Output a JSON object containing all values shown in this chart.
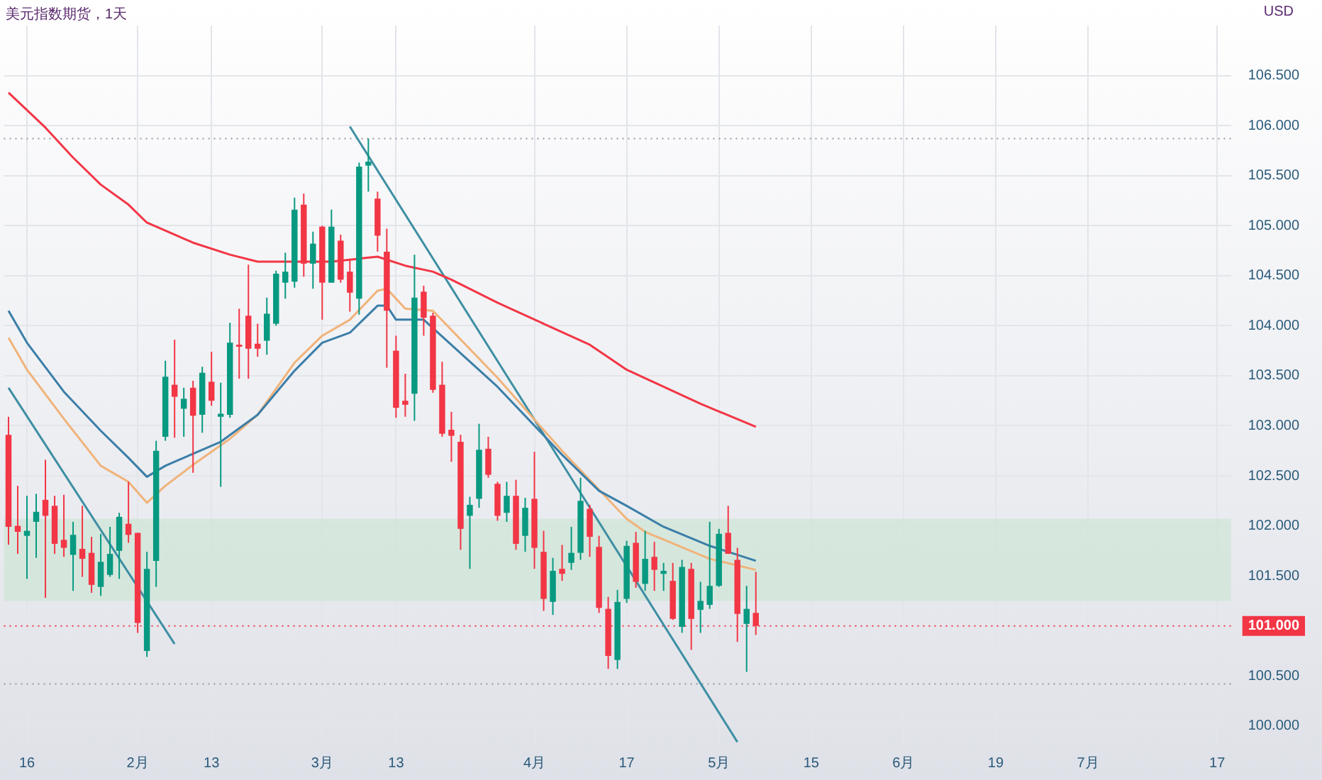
{
  "chart_data": {
    "type": "candlestick",
    "title": "美元指数期货，1天",
    "ylabel": "USD",
    "categories": [
      null,
      null,
      "16",
      null,
      null,
      null,
      null,
      null,
      null,
      null,
      null,
      null,
      null,
      null,
      "2月",
      null,
      null,
      null,
      null,
      null,
      null,
      null,
      "13",
      null,
      null,
      null,
      null,
      null,
      null,
      null,
      null,
      null,
      null,
      null,
      "3月",
      null,
      null,
      null,
      null,
      null,
      null,
      null,
      "13",
      null,
      null,
      null,
      null,
      null,
      null,
      null,
      null,
      null,
      null,
      null,
      null,
      null,
      null,
      "4月",
      null,
      null,
      null,
      null,
      null,
      null,
      null,
      null,
      null,
      "17",
      null,
      null,
      null,
      null,
      null,
      null,
      null,
      null,
      null,
      "5月",
      null,
      null,
      null,
      null,
      null,
      null,
      null,
      null,
      null,
      "15",
      null,
      null,
      null,
      null,
      null,
      null,
      null,
      null,
      null,
      "6月",
      null,
      null,
      null,
      null,
      null,
      null,
      null,
      null,
      null,
      "19",
      null,
      null,
      null,
      null,
      null,
      null,
      null,
      null,
      null,
      "7月",
      null,
      null,
      null,
      null,
      null,
      null,
      null,
      null,
      null,
      null,
      null,
      null,
      null,
      "17",
      null
    ],
    "ohlc": [
      [
        102.91,
        103.09,
        101.81,
        101.99
      ],
      [
        102.0,
        102.4,
        101.72,
        101.94
      ],
      [
        101.9,
        102.3,
        101.47,
        101.95
      ],
      [
        102.04,
        102.32,
        101.68,
        102.14
      ],
      [
        102.26,
        102.66,
        101.28,
        102.1
      ],
      [
        102.2,
        102.3,
        101.72,
        101.82
      ],
      [
        101.86,
        102.31,
        101.69,
        101.78
      ],
      [
        101.71,
        102.04,
        101.35,
        101.91
      ],
      [
        101.77,
        102.2,
        101.49,
        101.67
      ],
      [
        101.73,
        101.89,
        101.33,
        101.41
      ],
      [
        101.39,
        101.92,
        101.3,
        101.64
      ],
      [
        101.51,
        101.99,
        101.49,
        101.72
      ],
      [
        101.75,
        102.13,
        101.47,
        102.09
      ],
      [
        102.02,
        102.44,
        101.83,
        101.91
      ],
      [
        101.93,
        101.93,
        100.93,
        101.03
      ],
      [
        100.75,
        101.74,
        100.69,
        101.57
      ],
      [
        101.65,
        102.85,
        101.39,
        102.75
      ],
      [
        102.89,
        103.65,
        102.85,
        103.49
      ],
      [
        103.41,
        103.86,
        102.88,
        103.29
      ],
      [
        103.17,
        103.38,
        102.89,
        103.27
      ],
      [
        103.38,
        103.45,
        102.53,
        103.1
      ],
      [
        103.11,
        103.59,
        102.93,
        103.53
      ],
      [
        103.44,
        103.74,
        103.2,
        103.25
      ],
      [
        103.09,
        103.43,
        102.39,
        103.12
      ],
      [
        103.11,
        104.03,
        103.08,
        103.83
      ],
      [
        103.81,
        104.17,
        103.47,
        103.79
      ],
      [
        104.1,
        104.61,
        103.47,
        103.77
      ],
      [
        103.82,
        104.02,
        103.69,
        103.77
      ],
      [
        103.85,
        104.28,
        103.71,
        104.12
      ],
      [
        104.02,
        104.55,
        104.0,
        104.52
      ],
      [
        104.43,
        104.73,
        104.27,
        104.54
      ],
      [
        104.44,
        105.28,
        104.38,
        105.16
      ],
      [
        105.21,
        105.32,
        104.49,
        104.62
      ],
      [
        104.62,
        104.94,
        104.37,
        104.82
      ],
      [
        104.99,
        105.0,
        104.06,
        104.43
      ],
      [
        104.43,
        105.16,
        104.43,
        104.99
      ],
      [
        104.85,
        104.91,
        104.43,
        104.46
      ],
      [
        104.54,
        104.67,
        104.14,
        104.33
      ],
      [
        104.27,
        105.63,
        104.11,
        105.59
      ],
      [
        105.6,
        105.87,
        105.34,
        105.64
      ],
      [
        105.27,
        105.34,
        104.74,
        104.9
      ],
      [
        104.74,
        104.97,
        103.58,
        104.15
      ],
      [
        103.75,
        103.9,
        103.08,
        103.18
      ],
      [
        103.25,
        103.52,
        103.09,
        103.21
      ],
      [
        103.32,
        104.71,
        103.05,
        104.28
      ],
      [
        104.34,
        104.4,
        103.9,
        104.08
      ],
      [
        104.1,
        104.13,
        103.33,
        103.36
      ],
      [
        103.41,
        103.64,
        102.89,
        102.92
      ],
      [
        102.96,
        103.14,
        102.64,
        102.9
      ],
      [
        102.84,
        102.91,
        101.76,
        101.97
      ],
      [
        102.1,
        102.29,
        101.57,
        102.21
      ],
      [
        102.27,
        103.02,
        102.18,
        102.76
      ],
      [
        102.77,
        102.89,
        102.48,
        102.51
      ],
      [
        102.42,
        102.44,
        102.05,
        102.1
      ],
      [
        102.13,
        102.44,
        102.04,
        102.3
      ],
      [
        102.3,
        102.46,
        101.76,
        101.82
      ],
      [
        101.9,
        102.28,
        101.74,
        102.18
      ],
      [
        102.27,
        102.74,
        101.57,
        101.78
      ],
      [
        101.74,
        101.95,
        101.15,
        101.27
      ],
      [
        101.24,
        101.68,
        101.11,
        101.55
      ],
      [
        101.57,
        101.81,
        101.45,
        101.52
      ],
      [
        101.63,
        101.99,
        101.56,
        101.73
      ],
      [
        101.73,
        102.48,
        101.66,
        102.25
      ],
      [
        102.17,
        102.21,
        101.69,
        101.89
      ],
      [
        101.79,
        101.9,
        101.13,
        101.18
      ],
      [
        101.17,
        101.29,
        100.57,
        100.7
      ],
      [
        100.66,
        101.36,
        100.57,
        101.24
      ],
      [
        101.27,
        101.85,
        101.23,
        101.8
      ],
      [
        101.83,
        101.94,
        101.38,
        101.44
      ],
      [
        101.42,
        101.95,
        101.35,
        101.67
      ],
      [
        101.69,
        101.84,
        101.35,
        101.56
      ],
      [
        101.52,
        101.63,
        101.35,
        101.55
      ],
      [
        101.45,
        101.63,
        101.06,
        101.07
      ],
      [
        100.99,
        101.66,
        100.93,
        101.59
      ],
      [
        101.57,
        101.63,
        100.76,
        101.07
      ],
      [
        101.16,
        101.44,
        100.93,
        101.25
      ],
      [
        101.21,
        102.04,
        101.17,
        101.4
      ],
      [
        101.4,
        101.97,
        101.39,
        101.92
      ],
      [
        101.93,
        102.2,
        101.72,
        101.72
      ],
      [
        101.66,
        101.78,
        100.84,
        101.12
      ],
      [
        101.02,
        101.4,
        100.54,
        101.17
      ],
      [
        101.13,
        101.54,
        100.91,
        101.0
      ],
      null,
      null,
      null,
      null,
      null,
      null,
      null,
      null,
      null,
      null,
      null,
      null,
      null,
      null,
      null,
      null,
      null,
      null,
      null,
      null,
      null,
      null,
      null,
      null,
      null,
      null,
      null,
      null,
      null,
      null,
      null,
      null,
      null,
      null,
      null,
      null,
      null,
      null,
      null,
      null,
      null,
      null,
      null,
      null,
      null,
      null,
      null,
      null,
      null,
      null,
      null
    ],
    "colors": [
      "#f23645",
      "#f23645",
      "#089981",
      "#089981",
      "#f23645",
      "#f23645",
      "#f23645",
      "#089981",
      "#f23645",
      "#f23645",
      "#089981",
      "#089981",
      "#089981",
      "#f23645",
      "#f23645",
      "#089981",
      "#089981",
      "#089981",
      "#f23645",
      "#089981",
      "#f23645",
      "#089981",
      "#f23645",
      "#089981",
      "#089981",
      "#f23645",
      "#f23645",
      "#f23645",
      "#089981",
      "#089981",
      "#089981",
      "#089981",
      "#f23645",
      "#089981",
      "#f23645",
      "#089981",
      "#f23645",
      "#f23645",
      "#089981",
      "#089981",
      "#f23645",
      "#f23645",
      "#f23645",
      "#f23645",
      "#089981",
      "#f23645",
      "#f23645",
      "#f23645",
      "#f23645",
      "#f23645",
      "#089981",
      "#089981",
      "#f23645",
      "#f23645",
      "#089981",
      "#f23645",
      "#089981",
      "#f23645",
      "#f23645",
      "#089981",
      "#f23645",
      "#089981",
      "#089981",
      "#f23645",
      "#f23645",
      "#f23645",
      "#089981",
      "#089981",
      "#f23645",
      "#089981",
      "#f23645",
      "#089981",
      "#f23645",
      "#089981",
      "#f23645",
      "#089981",
      "#089981",
      "#089981",
      "#f23645",
      "#f23645",
      "#089981",
      "#f23645",
      null,
      null,
      null,
      null,
      null,
      null,
      null,
      null,
      null,
      null,
      null,
      null,
      null,
      null,
      null,
      null,
      null,
      null,
      null,
      null,
      null,
      null,
      null,
      null,
      null,
      null,
      null,
      null,
      null,
      null,
      null,
      null,
      null,
      null,
      null,
      null,
      null,
      null,
      null,
      null,
      null,
      null,
      null,
      null,
      null,
      null,
      null,
      null,
      null,
      null,
      null
    ],
    "series": [
      {
        "type": "line",
        "color": "#f23645",
        "values": [
          106.33,
          null,
          null,
          null,
          105.98,
          null,
          null,
          105.68,
          null,
          null,
          105.41,
          null,
          null,
          105.21,
          null,
          105.03,
          null,
          null,
          null,
          null,
          104.83,
          null,
          null,
          null,
          104.71,
          null,
          null,
          104.64,
          null,
          null,
          104.64,
          null,
          null,
          null,
          null,
          104.64,
          null,
          null,
          null,
          null,
          104.69,
          null,
          null,
          104.6,
          null,
          null,
          104.54,
          null,
          104.46,
          null,
          null,
          null,
          null,
          104.23,
          null,
          null,
          null,
          null,
          104.02,
          null,
          null,
          null,
          null,
          103.81,
          null,
          null,
          null,
          103.56,
          null,
          null,
          null,
          null,
          null,
          null,
          null,
          103.22,
          null,
          null,
          null,
          null,
          null,
          102.99,
          null,
          null,
          null,
          null,
          null,
          null,
          null,
          null,
          null,
          null,
          null,
          null,
          null,
          null,
          null,
          null,
          null,
          null,
          null,
          null,
          null,
          null,
          null,
          null,
          null,
          null,
          null,
          null,
          null,
          null,
          null,
          null,
          null,
          null,
          null,
          null,
          null,
          null,
          null,
          null,
          null,
          null,
          null,
          null,
          null,
          null,
          null,
          null,
          null,
          null,
          null
        ]
      },
      {
        "type": "line",
        "color": "#3b7ea8",
        "values": [
          104.15,
          null,
          103.83,
          null,
          null,
          null,
          103.34,
          null,
          null,
          null,
          102.95,
          null,
          null,
          102.68,
          null,
          102.49,
          null,
          102.6,
          null,
          null,
          102.72,
          null,
          null,
          102.84,
          null,
          null,
          null,
          103.11,
          null,
          null,
          null,
          103.55,
          null,
          null,
          103.83,
          null,
          null,
          103.93,
          null,
          null,
          104.2,
          104.2,
          104.06,
          null,
          null,
          104.06,
          null,
          null,
          null,
          null,
          null,
          null,
          null,
          103.39,
          null,
          null,
          null,
          null,
          null,
          null,
          102.71,
          null,
          null,
          null,
          102.35,
          null,
          null,
          102.2,
          null,
          null,
          null,
          101.99,
          null,
          null,
          null,
          null,
          101.8,
          null,
          null,
          null,
          null,
          101.65,
          null,
          null,
          null,
          null,
          null,
          null,
          null,
          null,
          null,
          null,
          null,
          null,
          null,
          null,
          null,
          null,
          null,
          null,
          null,
          null,
          null,
          null,
          null,
          null,
          null,
          null,
          null,
          null,
          null,
          null,
          null,
          null,
          null,
          null,
          null,
          null,
          null,
          null,
          null,
          null,
          null,
          null,
          null,
          null,
          null,
          null,
          null,
          null,
          null,
          null,
          null
        ]
      },
      {
        "type": "line",
        "color": "#f0b37a",
        "values": [
          103.88,
          null,
          103.56,
          null,
          null,
          null,
          103.07,
          null,
          null,
          null,
          102.6,
          null,
          null,
          102.44,
          null,
          102.23,
          null,
          102.4,
          null,
          null,
          102.61,
          null,
          null,
          null,
          102.87,
          null,
          null,
          103.11,
          null,
          null,
          null,
          103.63,
          null,
          null,
          103.9,
          null,
          null,
          104.06,
          null,
          null,
          104.35,
          104.37,
          null,
          104.17,
          null,
          null,
          104.15,
          null,
          null,
          null,
          null,
          null,
          null,
          103.48,
          null,
          null,
          null,
          null,
          null,
          null,
          102.75,
          null,
          null,
          null,
          null,
          null,
          null,
          102.07,
          null,
          101.94,
          null,
          null,
          null,
          null,
          null,
          null,
          101.67,
          null,
          null,
          null,
          null,
          101.56,
          null,
          null,
          null,
          null,
          null,
          null,
          null,
          null,
          null,
          null,
          null,
          null,
          null,
          null,
          null,
          null,
          null,
          null,
          null,
          null,
          null,
          null,
          null,
          null,
          null,
          null,
          null,
          null,
          null,
          null,
          null,
          null,
          null,
          null,
          null,
          null,
          null,
          null,
          null,
          null,
          null,
          null,
          null,
          null,
          null,
          null,
          null,
          null,
          null,
          null,
          null
        ]
      },
      {
        "type": "line",
        "color": "#3e8fa3",
        "values": [
          103.38,
          null,
          null,
          null,
          null,
          null,
          null,
          null,
          null,
          null,
          null,
          null,
          null,
          null,
          null,
          null,
          null,
          null,
          100.82,
          null,
          null,
          null,
          null,
          null,
          null,
          null,
          null,
          null,
          null,
          null,
          null,
          null,
          null,
          null,
          null,
          null,
          null,
          null,
          null,
          null,
          null,
          null,
          null,
          null,
          null,
          null,
          null,
          null,
          null,
          null,
          null,
          null,
          null,
          null,
          null,
          null,
          null,
          null,
          null,
          null,
          null,
          null,
          null,
          null,
          null,
          null,
          null,
          null,
          null,
          null,
          null,
          null,
          null,
          null,
          null,
          null,
          null,
          null,
          null,
          null,
          null,
          null,
          null,
          null,
          null,
          null,
          null,
          null,
          null,
          null,
          null,
          null,
          null,
          null,
          null,
          null,
          null,
          null,
          null,
          null,
          null,
          null,
          null,
          null,
          null,
          null,
          null,
          null,
          null,
          null,
          null,
          null,
          null,
          null,
          null,
          null,
          null,
          null,
          null,
          null,
          null,
          null,
          null,
          null,
          null,
          null,
          null,
          null,
          null,
          null,
          null,
          null,
          null
        ]
      },
      {
        "type": "line",
        "color": "#3e8fa3",
        "values": [
          null,
          null,
          null,
          null,
          null,
          null,
          null,
          null,
          null,
          null,
          null,
          null,
          null,
          null,
          null,
          null,
          null,
          null,
          null,
          null,
          null,
          null,
          null,
          null,
          null,
          null,
          null,
          null,
          null,
          null,
          null,
          null,
          null,
          null,
          null,
          null,
          null,
          105.99,
          null,
          null,
          null,
          null,
          null,
          null,
          null,
          null,
          null,
          null,
          null,
          null,
          null,
          null,
          null,
          null,
          null,
          null,
          null,
          null,
          null,
          null,
          null,
          null,
          null,
          null,
          null,
          null,
          null,
          null,
          null,
          null,
          null,
          null,
          null,
          null,
          null,
          null,
          null,
          null,
          null,
          99.84,
          null,
          null,
          null,
          null,
          null,
          null,
          null,
          null,
          null,
          null,
          null,
          null,
          null,
          null,
          null,
          null,
          null,
          null,
          null,
          null,
          null,
          null,
          null,
          null,
          null,
          null,
          null,
          null,
          null,
          null,
          null,
          null,
          null,
          null,
          null,
          null,
          null,
          null,
          null,
          null,
          null,
          null,
          null,
          null,
          null,
          null,
          null,
          null,
          null,
          null,
          null,
          null,
          null
        ]
      }
    ],
    "ylim": [
      99.8,
      107.0
    ],
    "yticks": [
      {
        "value": 100,
        "label": "100.000"
      },
      {
        "value": 100.5,
        "label": "100.500"
      },
      {
        "value": 101,
        "label": null
      },
      {
        "value": 101.5,
        "label": "101.500"
      },
      {
        "value": 102,
        "label": "102.000"
      },
      {
        "value": 102.5,
        "label": "102.500"
      },
      {
        "value": 103,
        "label": "103.000"
      },
      {
        "value": 103.5,
        "label": "103.500"
      },
      {
        "value": 104,
        "label": "104.000"
      },
      {
        "value": 104.5,
        "label": "104.500"
      },
      {
        "value": 105,
        "label": "105.000"
      },
      {
        "value": 105.5,
        "label": "105.500"
      },
      {
        "value": 106,
        "label": "106.000"
      },
      {
        "value": 106.5,
        "label": "106.500"
      }
    ],
    "bands": [
      {
        "axis": "y",
        "from": 101.25,
        "to": 102.07,
        "color": "#cde6d6"
      }
    ],
    "ref_lines": [
      {
        "axis": "y",
        "value": 105.87,
        "color": "#9598a1",
        "line_style": "dotted"
      },
      {
        "axis": "y",
        "value": 100.42,
        "color": "#9598a1",
        "line_style": "dotted"
      },
      {
        "axis": "y",
        "value": 101.0,
        "label": "101.000",
        "color": "#f23645",
        "line_style": "dotted"
      }
    ],
    "grid": true,
    "legend": false
  }
}
